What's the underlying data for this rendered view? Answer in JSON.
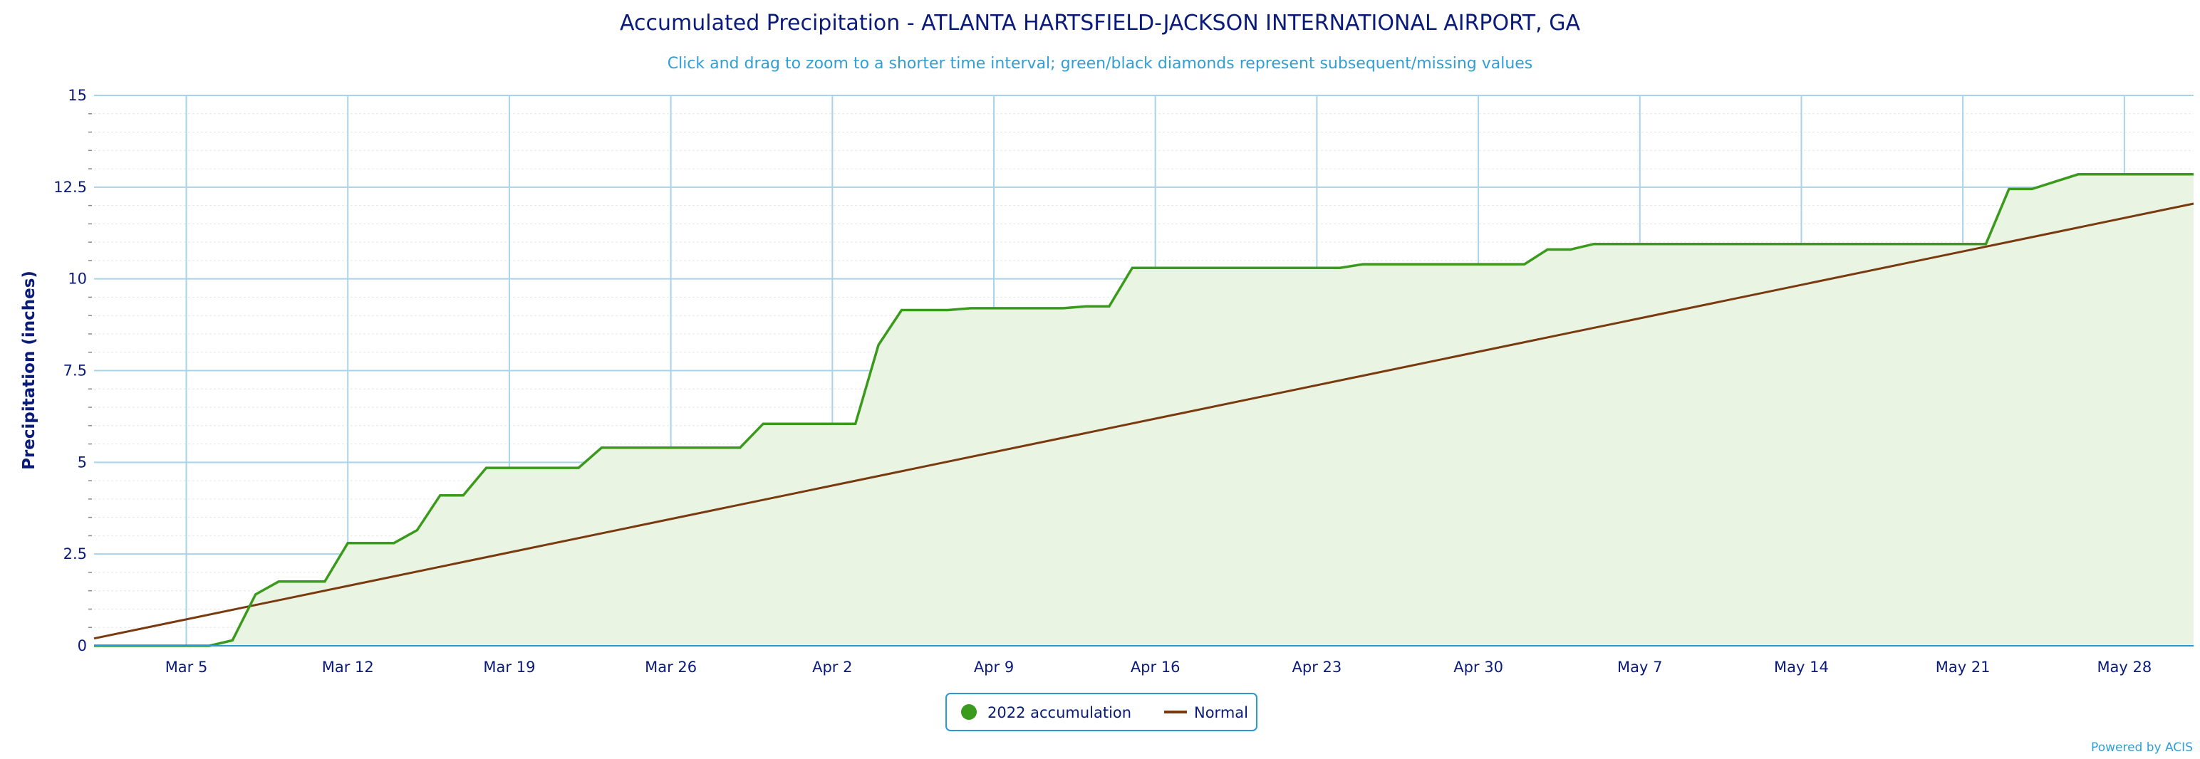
{
  "chart_data": {
    "type": "area",
    "title": "Accumulated Precipitation - ATLANTA HARTSFIELD-JACKSON INTERNATIONAL AIRPORT, GA",
    "subtitle": "Click and drag to zoom to a shorter time interval; green/black diamonds represent subsequent/missing values",
    "ylabel": "Precipitation (inches)",
    "xlabel": "",
    "ylim": [
      0,
      15
    ],
    "yticks": [
      0,
      2.5,
      5,
      7.5,
      10,
      12.5,
      15
    ],
    "ytick_labels": [
      "0",
      "2.5",
      "5",
      "7.5",
      "10",
      "12.5",
      "15"
    ],
    "x_start_day": 0,
    "x_end_day": 91,
    "xticks": [
      {
        "day": 4,
        "label": "Mar 5"
      },
      {
        "day": 11,
        "label": "Mar 12"
      },
      {
        "day": 18,
        "label": "Mar 19"
      },
      {
        "day": 25,
        "label": "Mar 26"
      },
      {
        "day": 32,
        "label": "Apr 2"
      },
      {
        "day": 39,
        "label": "Apr 9"
      },
      {
        "day": 46,
        "label": "Apr 16"
      },
      {
        "day": 53,
        "label": "Apr 23"
      },
      {
        "day": 60,
        "label": "Apr 30"
      },
      {
        "day": 67,
        "label": "May 7"
      },
      {
        "day": 74,
        "label": "May 14"
      },
      {
        "day": 81,
        "label": "May 21"
      },
      {
        "day": 88,
        "label": "May 28"
      }
    ],
    "series": [
      {
        "name": "2022 accumulation",
        "color": "#3a9a1c",
        "fill": "#eaf4e3",
        "points": [
          [
            0,
            0
          ],
          [
            5,
            0
          ],
          [
            6,
            0.15
          ],
          [
            7,
            1.4
          ],
          [
            8,
            1.75
          ],
          [
            9,
            1.75
          ],
          [
            10,
            1.75
          ],
          [
            11,
            2.8
          ],
          [
            12,
            2.8
          ],
          [
            13,
            2.8
          ],
          [
            14,
            3.15
          ],
          [
            15,
            4.1
          ],
          [
            16,
            4.1
          ],
          [
            17,
            4.85
          ],
          [
            18,
            4.85
          ],
          [
            19,
            4.85
          ],
          [
            20,
            4.85
          ],
          [
            21,
            4.85
          ],
          [
            22,
            5.4
          ],
          [
            23,
            5.4
          ],
          [
            24,
            5.4
          ],
          [
            25,
            5.4
          ],
          [
            26,
            5.4
          ],
          [
            27,
            5.4
          ],
          [
            28,
            5.4
          ],
          [
            29,
            6.05
          ],
          [
            30,
            6.05
          ],
          [
            31,
            6.05
          ],
          [
            32,
            6.05
          ],
          [
            33,
            6.05
          ],
          [
            34,
            8.2
          ],
          [
            35,
            9.15
          ],
          [
            36,
            9.15
          ],
          [
            37,
            9.15
          ],
          [
            38,
            9.2
          ],
          [
            39,
            9.2
          ],
          [
            40,
            9.2
          ],
          [
            41,
            9.2
          ],
          [
            42,
            9.2
          ],
          [
            43,
            9.25
          ],
          [
            44,
            9.25
          ],
          [
            45,
            10.3
          ],
          [
            46,
            10.3
          ],
          [
            47,
            10.3
          ],
          [
            48,
            10.3
          ],
          [
            49,
            10.3
          ],
          [
            50,
            10.3
          ],
          [
            51,
            10.3
          ],
          [
            52,
            10.3
          ],
          [
            53,
            10.3
          ],
          [
            54,
            10.3
          ],
          [
            55,
            10.4
          ],
          [
            56,
            10.4
          ],
          [
            57,
            10.4
          ],
          [
            58,
            10.4
          ],
          [
            59,
            10.4
          ],
          [
            60,
            10.4
          ],
          [
            61,
            10.4
          ],
          [
            62,
            10.4
          ],
          [
            63,
            10.8
          ],
          [
            64,
            10.8
          ],
          [
            65,
            10.95
          ],
          [
            66,
            10.95
          ],
          [
            67,
            10.95
          ],
          [
            68,
            10.95
          ],
          [
            69,
            10.95
          ],
          [
            70,
            10.95
          ],
          [
            71,
            10.95
          ],
          [
            72,
            10.95
          ],
          [
            73,
            10.95
          ],
          [
            74,
            10.95
          ],
          [
            75,
            10.95
          ],
          [
            76,
            10.95
          ],
          [
            77,
            10.95
          ],
          [
            78,
            10.95
          ],
          [
            79,
            10.95
          ],
          [
            80,
            10.95
          ],
          [
            81,
            10.95
          ],
          [
            82,
            10.95
          ],
          [
            83,
            12.45
          ],
          [
            84,
            12.45
          ],
          [
            85,
            12.65
          ],
          [
            86,
            12.85
          ],
          [
            87,
            12.85
          ],
          [
            88,
            12.85
          ],
          [
            89,
            12.85
          ],
          [
            90,
            12.85
          ],
          [
            91,
            12.85
          ]
        ]
      },
      {
        "name": "Normal",
        "color": "#7a3a0f",
        "points": [
          [
            0,
            0.2
          ],
          [
            91,
            12.05
          ]
        ]
      }
    ],
    "legend": {
      "position": "bottom-center",
      "items": [
        {
          "label": "2022 accumulation",
          "symbol": "dot",
          "color": "#3a9a1c"
        },
        {
          "label": "Normal",
          "symbol": "line",
          "color": "#7a3a0f"
        }
      ]
    },
    "grid": true,
    "credits": "Powered by ACIS"
  }
}
